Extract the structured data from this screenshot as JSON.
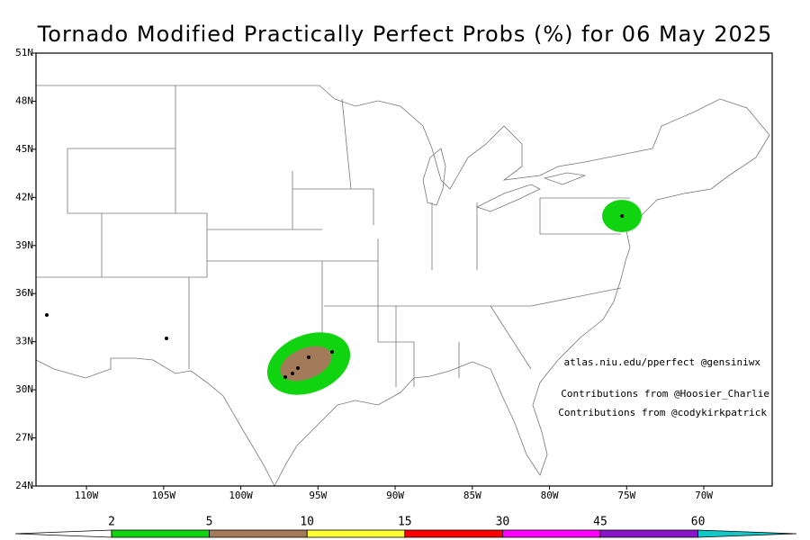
{
  "title": "Tornado Modified Practically Perfect Probs (%) for 06 May 2025",
  "map": {
    "lonlim": [
      -113.27,
      -65.57
    ],
    "latlim": [
      24,
      51
    ],
    "lonticks": [
      {
        "value": -110,
        "label": "110W"
      },
      {
        "value": -105,
        "label": "105W"
      },
      {
        "value": -100,
        "label": "100W"
      },
      {
        "value": -95,
        "label": "95W"
      },
      {
        "value": -90,
        "label": "90W"
      },
      {
        "value": -85,
        "label": "85W"
      },
      {
        "value": -80,
        "label": "80W"
      },
      {
        "value": -75,
        "label": "75W"
      },
      {
        "value": -70,
        "label": "70W"
      }
    ],
    "latticks": [
      {
        "value": 24,
        "label": "24N"
      },
      {
        "value": 27,
        "label": "27N"
      },
      {
        "value": 30,
        "label": "30N"
      },
      {
        "value": 33,
        "label": "33N"
      },
      {
        "value": 36,
        "label": "36N"
      },
      {
        "value": 39,
        "label": "39N"
      },
      {
        "value": 42,
        "label": "42N"
      },
      {
        "value": 45,
        "label": "45N"
      },
      {
        "value": 48,
        "label": "48N"
      },
      {
        "value": 51,
        "label": "51N"
      }
    ]
  },
  "credits": [
    "atlas.niu.edu/pperfect @gensiniwx",
    "Contributions from @Hoosier_Charlie",
    "Contributions from @codykirkpatrick"
  ],
  "colorbar": {
    "levels": [
      2,
      5,
      10,
      15,
      30,
      45,
      60
    ],
    "colors": [
      "#11d411",
      "#a37b5a",
      "#ffff33",
      "#ff0000",
      "#ff00ff",
      "#8a14c8",
      "#14c8c8"
    ]
  }
}
